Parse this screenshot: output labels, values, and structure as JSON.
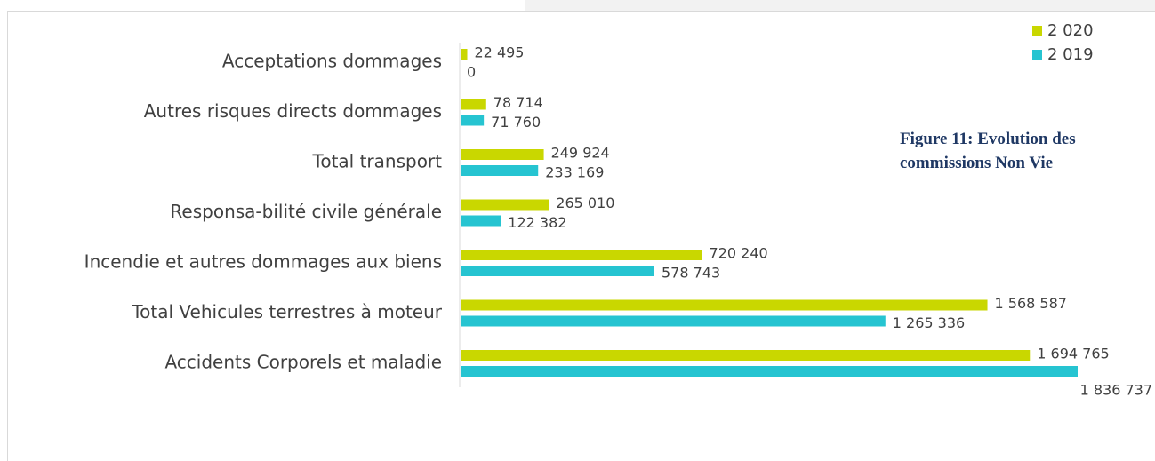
{
  "chart_data": {
    "type": "bar",
    "orientation": "horizontal",
    "caption": "Figure 11: Evolution des commissions Non Vie",
    "categories": [
      "Acceptations dommages",
      "Autres risques directs dommages",
      "Total transport",
      "Responsa-bilité civile générale",
      "Incendie et autres dommages aux biens",
      "Total Vehicules terrestres à moteur",
      "Accidents Corporels et maladie"
    ],
    "series": [
      {
        "name": "2 020",
        "color": "#c9d700",
        "values": [
          22495,
          78714,
          249924,
          265010,
          720240,
          1568587,
          1694765
        ],
        "value_labels": [
          "22 495",
          "78 714",
          "249 924",
          "265 010",
          "720 240",
          "1 568 587",
          "1 694 765"
        ]
      },
      {
        "name": "2 019",
        "color": "#26c4d1",
        "values": [
          0,
          71760,
          233169,
          122382,
          578743,
          1265336,
          1836737
        ],
        "value_labels": [
          "0",
          "71 760",
          "233 169",
          "122 382",
          "578 743",
          "1 265 336",
          "1 836 737"
        ]
      }
    ],
    "legend": "top-right"
  }
}
